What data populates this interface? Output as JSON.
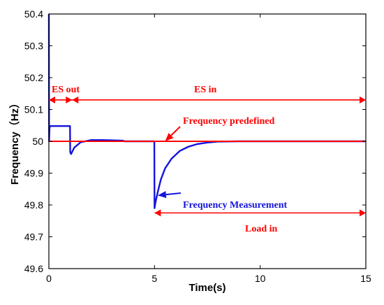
{
  "chart_data": {
    "type": "line",
    "xlabel": "Time(s)",
    "ylabel": "Frequency（Hz）",
    "xlim": [
      0,
      15
    ],
    "ylim": [
      49.6,
      50.4
    ],
    "xticks": [
      "0",
      "5",
      "10",
      "15"
    ],
    "yticks": [
      "49.6",
      "49.7",
      "49.8",
      "49.9",
      "50",
      "50.1",
      "50.2",
      "50.3",
      "50.4"
    ],
    "grid": false,
    "colors": {
      "measurement": "#1414dc",
      "predefined": "#ff0000",
      "annotation": "#ff0000"
    },
    "series": [
      {
        "key": "measurement",
        "x": [
          0,
          0.01,
          0.03,
          0.05,
          0.1,
          0.5,
          1.0,
          1.01,
          1.05,
          1.2,
          1.5,
          2.0,
          2.5,
          3.0,
          3.5,
          3.6,
          4.0,
          4.99,
          5.0,
          5.05,
          5.15,
          5.3,
          5.5,
          5.8,
          6.2,
          6.6,
          7.0,
          7.5,
          8.0,
          9.0,
          15.0
        ],
        "values": [
          50.4,
          50.0,
          50.04,
          50.048,
          50.048,
          50.048,
          50.048,
          49.966,
          49.96,
          49.98,
          49.997,
          50.004,
          50.004,
          50.003,
          50.002,
          50.0,
          50.0,
          50.0,
          49.79,
          49.81,
          49.84,
          49.88,
          49.915,
          49.945,
          49.97,
          49.983,
          49.991,
          49.996,
          49.999,
          50.0,
          50.0
        ]
      },
      {
        "key": "predefined",
        "x": [
          0,
          15
        ],
        "values": [
          50,
          50
        ]
      }
    ],
    "annotations": {
      "es_out": {
        "label": "ES out",
        "x_range": [
          0,
          1.1
        ],
        "y": 50.13
      },
      "es_in": {
        "label": "ES in",
        "x_range": [
          1.1,
          15
        ],
        "y": 50.13
      },
      "load_in": {
        "label": "Load in",
        "x_range": [
          5,
          15
        ],
        "y": 49.775
      },
      "frequency_predefined": {
        "label": "Frequency predefined",
        "point": [
          5.5,
          50.0
        ]
      },
      "frequency_measurement": {
        "label": "Frequency Measurement",
        "point": [
          5.15,
          49.83
        ]
      }
    }
  }
}
